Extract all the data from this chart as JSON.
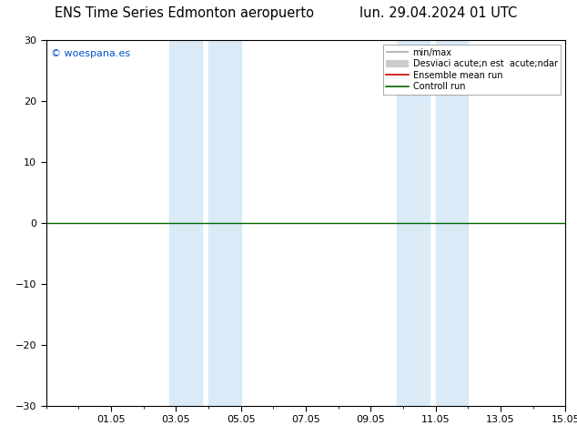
{
  "title_left": "ENS Time Series Edmonton aeropuerto",
  "title_right": "lun. 29.04.2024 01 UTC",
  "watermark": "© woespana.es",
  "ylim": [
    -30,
    30
  ],
  "yticks": [
    -30,
    -20,
    -10,
    0,
    10,
    20,
    30
  ],
  "xtick_labels": [
    "01.05",
    "03.05",
    "05.05",
    "07.05",
    "09.05",
    "11.05",
    "13.05",
    "15.05"
  ],
  "xtick_positions": [
    2,
    4,
    6,
    8,
    10,
    12,
    14,
    16
  ],
  "xlim": [
    0,
    16
  ],
  "shaded_regions": [
    {
      "x_start": 3.8,
      "x_end": 4.8,
      "color": "#daeaf7"
    },
    {
      "x_start": 5.0,
      "x_end": 6.0,
      "color": "#daeaf7"
    },
    {
      "x_start": 10.8,
      "x_end": 11.8,
      "color": "#daeaf7"
    },
    {
      "x_start": 12.0,
      "x_end": 13.0,
      "color": "#daeaf7"
    }
  ],
  "hline_y": 0,
  "bg_color": "#ffffff",
  "plot_bg_color": "#ffffff",
  "title_fontsize": 10.5,
  "tick_fontsize": 8,
  "watermark_color": "#0055cc",
  "legend_label_minmax": "min/max",
  "legend_label_std": "Desviaci acute;n est  acute;ndar",
  "legend_label_ensemble": "Ensemble mean run",
  "legend_label_control": "Controll run",
  "minmax_color": "#aaaaaa",
  "std_color": "#cccccc",
  "ensemble_color": "#cc0000",
  "control_color": "#006600"
}
